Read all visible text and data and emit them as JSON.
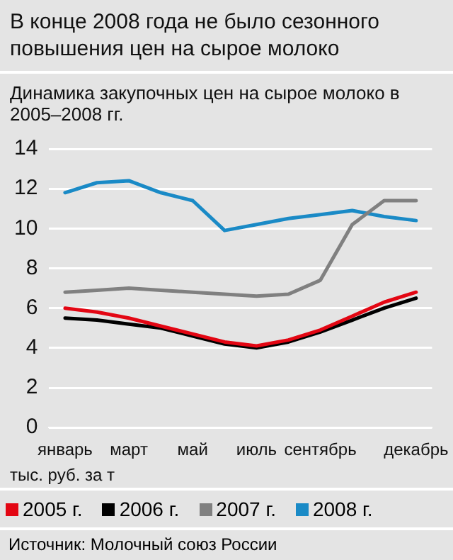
{
  "chart_data": {
    "type": "line",
    "title": "В конце  2008 года не было сезонного повышения цен на сырое молоко",
    "subtitle": "Динамика закупочных цен на сырое молоко в 2005–2008 гг.",
    "ylabel": "тыс. руб. за т",
    "annotations": [
      "Источник: Молочный союз России"
    ],
    "categories": [
      "январь",
      null,
      "март",
      null,
      "май",
      null,
      "июль",
      null,
      "сентябрь",
      null,
      null,
      "декабрь"
    ],
    "series": [
      {
        "name": "2005 г.",
        "color": "#e30613",
        "values": [
          6.0,
          5.8,
          5.5,
          5.1,
          4.7,
          4.3,
          4.1,
          4.4,
          4.9,
          5.6,
          6.3,
          6.8
        ]
      },
      {
        "name": "2006 г.",
        "color": "#000000",
        "values": [
          5.5,
          5.4,
          5.2,
          5.0,
          4.6,
          4.2,
          4.0,
          4.3,
          4.8,
          5.4,
          6.0,
          6.5
        ]
      },
      {
        "name": "2007 г.",
        "color": "#808080",
        "values": [
          6.8,
          6.9,
          7.0,
          6.9,
          6.8,
          6.7,
          6.6,
          6.7,
          7.4,
          10.2,
          11.4,
          11.4
        ]
      },
      {
        "name": "2008 г.",
        "color": "#1a8ac6",
        "values": [
          11.8,
          12.3,
          12.4,
          11.8,
          11.4,
          9.9,
          10.2,
          10.5,
          10.7,
          10.9,
          10.6,
          10.4
        ]
      }
    ],
    "ylim": [
      0,
      14
    ],
    "yticks": [
      0,
      2,
      4,
      6,
      8,
      10,
      12,
      14
    ],
    "grid": "y",
    "legend": "bottom",
    "marker": "none",
    "line_style": "solid"
  }
}
